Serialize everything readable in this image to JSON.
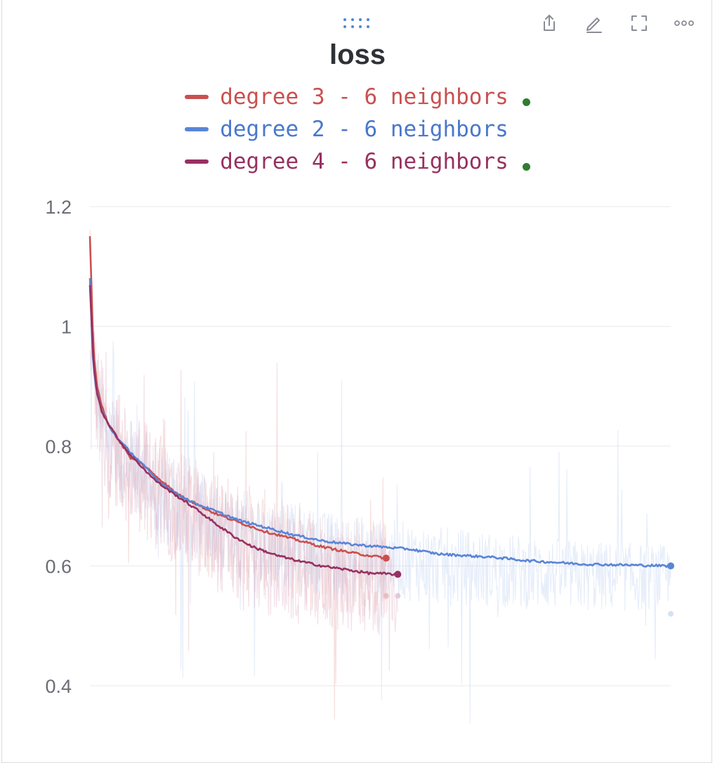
{
  "panel": {
    "toolbar": [
      {
        "name": "share-icon"
      },
      {
        "name": "edit-icon"
      },
      {
        "name": "fullscreen-icon"
      },
      {
        "name": "more-options-icon"
      }
    ],
    "drag_handle": "drag-handle-icon"
  },
  "chart_data": {
    "type": "line",
    "title": "loss",
    "xlabel": "",
    "ylabel": "",
    "ylim": [
      0.35,
      1.25
    ],
    "yticks": [
      {
        "value": 0.4,
        "label": "0.4"
      },
      {
        "value": 0.6,
        "label": "0.6"
      },
      {
        "value": 0.8,
        "label": "0.8"
      },
      {
        "value": 1.0,
        "label": "1"
      },
      {
        "value": 1.2,
        "label": "1.2"
      }
    ],
    "x_range": [
      0,
      1
    ],
    "grid": true,
    "legend_position": "top-center",
    "series": [
      {
        "name": "degree 3 - 6 neighbors",
        "color": "#c9504f",
        "legend_dot": true,
        "x_end": 0.51,
        "smoothed": [
          [
            0,
            1.15
          ],
          [
            0.006,
            0.96
          ],
          [
            0.012,
            0.9
          ],
          [
            0.02,
            0.87
          ],
          [
            0.03,
            0.84
          ],
          [
            0.05,
            0.81
          ],
          [
            0.07,
            0.78
          ],
          [
            0.09,
            0.77
          ],
          [
            0.12,
            0.745
          ],
          [
            0.15,
            0.72
          ],
          [
            0.18,
            0.705
          ],
          [
            0.21,
            0.69
          ],
          [
            0.25,
            0.675
          ],
          [
            0.3,
            0.658
          ],
          [
            0.35,
            0.645
          ],
          [
            0.4,
            0.632
          ],
          [
            0.45,
            0.622
          ],
          [
            0.51,
            0.613
          ]
        ],
        "raw_band": [
          0.1,
          0.09
        ],
        "raw_end": 0.55
      },
      {
        "name": "degree 2 - 6 neighbors",
        "color": "#5a85d6",
        "legend_dot": false,
        "x_end": 1.0,
        "smoothed": [
          [
            0,
            1.08
          ],
          [
            0.005,
            0.95
          ],
          [
            0.01,
            0.9
          ],
          [
            0.02,
            0.86
          ],
          [
            0.035,
            0.83
          ],
          [
            0.05,
            0.81
          ],
          [
            0.07,
            0.79
          ],
          [
            0.09,
            0.77
          ],
          [
            0.12,
            0.74
          ],
          [
            0.15,
            0.72
          ],
          [
            0.18,
            0.705
          ],
          [
            0.22,
            0.69
          ],
          [
            0.26,
            0.675
          ],
          [
            0.3,
            0.665
          ],
          [
            0.35,
            0.652
          ],
          [
            0.4,
            0.642
          ],
          [
            0.45,
            0.636
          ],
          [
            0.5,
            0.632
          ],
          [
            0.55,
            0.628
          ],
          [
            0.6,
            0.62
          ],
          [
            0.65,
            0.617
          ],
          [
            0.7,
            0.614
          ],
          [
            0.75,
            0.609
          ],
          [
            0.8,
            0.606
          ],
          [
            0.85,
            0.603
          ],
          [
            0.9,
            0.602
          ],
          [
            0.95,
            0.601
          ],
          [
            1.0,
            0.6
          ]
        ],
        "raw_band": [
          0.08,
          0.09
        ],
        "raw_end": 0.52
      },
      {
        "name": "degree 4 - 6 neighbors",
        "color": "#97315f",
        "legend_dot": true,
        "x_end": 0.53,
        "smoothed": [
          [
            0,
            1.07
          ],
          [
            0.006,
            0.94
          ],
          [
            0.012,
            0.89
          ],
          [
            0.02,
            0.86
          ],
          [
            0.03,
            0.84
          ],
          [
            0.05,
            0.81
          ],
          [
            0.07,
            0.785
          ],
          [
            0.09,
            0.765
          ],
          [
            0.11,
            0.745
          ],
          [
            0.13,
            0.73
          ],
          [
            0.16,
            0.71
          ],
          [
            0.19,
            0.69
          ],
          [
            0.22,
            0.668
          ],
          [
            0.25,
            0.648
          ],
          [
            0.28,
            0.632
          ],
          [
            0.32,
            0.618
          ],
          [
            0.36,
            0.608
          ],
          [
            0.4,
            0.6
          ],
          [
            0.44,
            0.594
          ],
          [
            0.48,
            0.588
          ],
          [
            0.53,
            0.586
          ]
        ],
        "raw_band": [
          0.1,
          0.1
        ],
        "raw_end": 0.55
      }
    ]
  }
}
